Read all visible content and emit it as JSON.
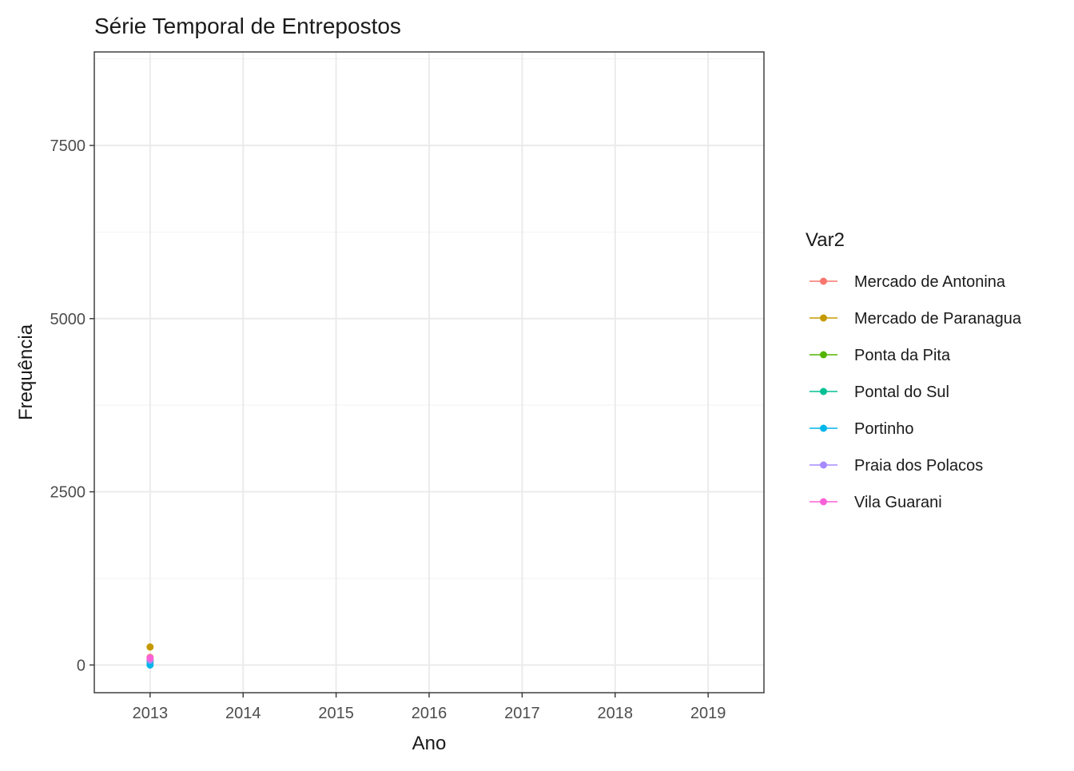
{
  "chart_data": {
    "type": "line",
    "title": "Série Temporal de Entrepostos",
    "xlabel": "Ano",
    "ylabel": "Frequência",
    "x_ticks": [
      2013,
      2014,
      2015,
      2016,
      2017,
      2018,
      2019
    ],
    "xlim": [
      2012.4,
      2019.6
    ],
    "y_ticks": [
      0,
      2500,
      5000,
      7500
    ],
    "ylim": [
      -400,
      8850
    ],
    "grid": true,
    "legend": {
      "title": "Var2",
      "position": "right"
    },
    "series": [
      {
        "name": "Mercado de Antonina",
        "color": "#F8766D",
        "points": [
          {
            "x": 2013,
            "y": 110
          }
        ]
      },
      {
        "name": "Mercado de Paranagua",
        "color": "#C49A00",
        "points": [
          {
            "x": 2013,
            "y": 260
          }
        ]
      },
      {
        "name": "Ponta da Pita",
        "color": "#53B400",
        "points": [
          {
            "x": 2013,
            "y": 60
          }
        ]
      },
      {
        "name": "Pontal do Sul",
        "color": "#00C094",
        "points": [
          {
            "x": 2013,
            "y": 40
          }
        ]
      },
      {
        "name": "Portinho",
        "color": "#00B6EB",
        "points": [
          {
            "x": 2013,
            "y": 0
          }
        ]
      },
      {
        "name": "Praia dos Polacos",
        "color": "#A58AFF",
        "points": [
          {
            "x": 2013,
            "y": 70
          }
        ]
      },
      {
        "name": "Vila Guarani",
        "color": "#FB61D7",
        "points": [
          {
            "x": 2013,
            "y": 100
          }
        ]
      }
    ]
  }
}
